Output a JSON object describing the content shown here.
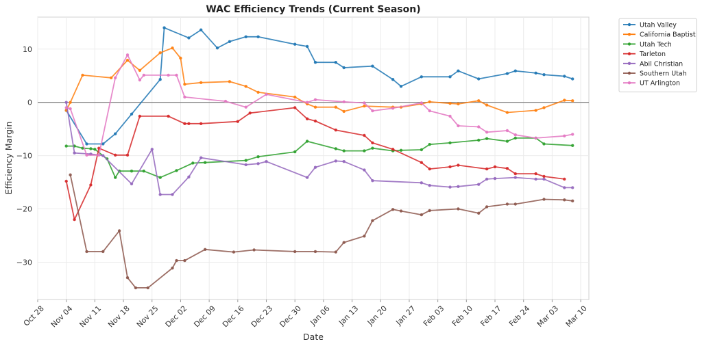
{
  "chart_data": {
    "type": "line",
    "title": "WAC Efficiency Trends (Current Season)",
    "xlabel": "Date",
    "ylabel": "Efficiency Margin",
    "year_start": 2024,
    "xlim": [
      "2024-10-28",
      "2025-03-12"
    ],
    "ylim": [
      -37,
      16
    ],
    "x_ticks": [
      {
        "date": "2024-10-28",
        "label": "Oct 28"
      },
      {
        "date": "2024-11-04",
        "label": "Nov 04"
      },
      {
        "date": "2024-11-11",
        "label": "Nov 11"
      },
      {
        "date": "2024-11-18",
        "label": "Nov 18"
      },
      {
        "date": "2024-11-25",
        "label": "Nov 25"
      },
      {
        "date": "2024-12-02",
        "label": "Dec 02"
      },
      {
        "date": "2024-12-09",
        "label": "Dec 09"
      },
      {
        "date": "2024-12-16",
        "label": "Dec 16"
      },
      {
        "date": "2024-12-23",
        "label": "Dec 23"
      },
      {
        "date": "2024-12-30",
        "label": "Dec 30"
      },
      {
        "date": "2025-01-06",
        "label": "Jan 06"
      },
      {
        "date": "2025-01-13",
        "label": "Jan 13"
      },
      {
        "date": "2025-01-20",
        "label": "Jan 20"
      },
      {
        "date": "2025-01-27",
        "label": "Jan 27"
      },
      {
        "date": "2025-02-03",
        "label": "Feb 03"
      },
      {
        "date": "2025-02-10",
        "label": "Feb 10"
      },
      {
        "date": "2025-02-17",
        "label": "Feb 17"
      },
      {
        "date": "2025-02-24",
        "label": "Feb 24"
      },
      {
        "date": "2025-03-03",
        "label": "Mar 03"
      },
      {
        "date": "2025-03-10",
        "label": "Mar 10"
      }
    ],
    "y_ticks": [
      {
        "value": -30,
        "label": "−30"
      },
      {
        "value": -20,
        "label": "−20"
      },
      {
        "value": -10,
        "label": "−10"
      },
      {
        "value": 0,
        "label": "0"
      },
      {
        "value": 10,
        "label": "10"
      }
    ],
    "zero_line": true,
    "grid": true,
    "legend_position": "outside-top-right",
    "series": [
      {
        "name": "Utah Valley",
        "color": "#1f77b4",
        "points": [
          [
            "2024-11-04",
            -1.5
          ],
          [
            "2024-11-09",
            -7.8
          ],
          [
            "2024-11-13",
            -7.8
          ],
          [
            "2024-11-16",
            -5.9
          ],
          [
            "2024-11-20",
            -2.2
          ],
          [
            "2024-11-27",
            4.3
          ],
          [
            "2024-11-28",
            14.0
          ],
          [
            "2024-12-04",
            12.1
          ],
          [
            "2024-12-07",
            13.6
          ],
          [
            "2024-12-11",
            10.2
          ],
          [
            "2024-12-14",
            11.4
          ],
          [
            "2024-12-18",
            12.3
          ],
          [
            "2024-12-21",
            12.3
          ],
          [
            "2024-12-30",
            10.9
          ],
          [
            "2025-01-02",
            10.5
          ],
          [
            "2025-01-04",
            7.5
          ],
          [
            "2025-01-09",
            7.5
          ],
          [
            "2025-01-11",
            6.5
          ],
          [
            "2025-01-18",
            6.8
          ],
          [
            "2025-01-23",
            4.3
          ],
          [
            "2025-01-25",
            3.0
          ],
          [
            "2025-01-30",
            4.8
          ],
          [
            "2025-02-06",
            4.8
          ],
          [
            "2025-02-08",
            5.9
          ],
          [
            "2025-02-13",
            4.4
          ],
          [
            "2025-02-20",
            5.4
          ],
          [
            "2025-02-22",
            5.9
          ],
          [
            "2025-02-27",
            5.5
          ],
          [
            "2025-03-01",
            5.2
          ],
          [
            "2025-03-06",
            4.9
          ],
          [
            "2025-03-08",
            4.4
          ]
        ]
      },
      {
        "name": "California Baptist",
        "color": "#ff7f0e",
        "points": [
          [
            "2024-11-04",
            -1.5
          ],
          [
            "2024-11-05",
            0.0
          ],
          [
            "2024-11-08",
            5.1
          ],
          [
            "2024-11-15",
            4.6
          ],
          [
            "2024-11-19",
            7.9
          ],
          [
            "2024-11-22",
            6.0
          ],
          [
            "2024-11-27",
            9.3
          ],
          [
            "2024-11-30",
            10.2
          ],
          [
            "2024-12-02",
            8.3
          ],
          [
            "2024-12-03",
            3.4
          ],
          [
            "2024-12-07",
            3.7
          ],
          [
            "2024-12-14",
            3.9
          ],
          [
            "2024-12-18",
            3.0
          ],
          [
            "2024-12-21",
            1.9
          ],
          [
            "2024-12-30",
            1.0
          ],
          [
            "2025-01-02",
            -0.3
          ],
          [
            "2025-01-04",
            -0.9
          ],
          [
            "2025-01-09",
            -0.9
          ],
          [
            "2025-01-11",
            -1.7
          ],
          [
            "2025-01-16",
            -0.7
          ],
          [
            "2025-01-23",
            -0.9
          ],
          [
            "2025-01-25",
            -0.9
          ],
          [
            "2025-01-30",
            -0.3
          ],
          [
            "2025-02-01",
            0.1
          ],
          [
            "2025-02-06",
            -0.2
          ],
          [
            "2025-02-08",
            -0.3
          ],
          [
            "2025-02-13",
            0.3
          ],
          [
            "2025-02-15",
            -0.5
          ],
          [
            "2025-02-20",
            -1.9
          ],
          [
            "2025-02-27",
            -1.5
          ],
          [
            "2025-03-01",
            -1.0
          ],
          [
            "2025-03-06",
            0.4
          ],
          [
            "2025-03-08",
            0.3
          ]
        ]
      },
      {
        "name": "Utah Tech",
        "color": "#2ca02c",
        "points": [
          [
            "2024-11-04",
            -8.2
          ],
          [
            "2024-11-06",
            -8.2
          ],
          [
            "2024-11-08",
            -8.6
          ],
          [
            "2024-11-10",
            -8.7
          ],
          [
            "2024-11-11",
            -8.8
          ],
          [
            "2024-11-14",
            -10.6
          ],
          [
            "2024-11-16",
            -14.1
          ],
          [
            "2024-11-17",
            -12.9
          ],
          [
            "2024-11-20",
            -12.9
          ],
          [
            "2024-11-23",
            -12.9
          ],
          [
            "2024-11-27",
            -14.1
          ],
          [
            "2024-12-01",
            -12.8
          ],
          [
            "2024-12-05",
            -11.4
          ],
          [
            "2024-12-08",
            -11.3
          ],
          [
            "2024-12-18",
            -10.9
          ],
          [
            "2024-12-21",
            -10.2
          ],
          [
            "2024-12-30",
            -9.3
          ],
          [
            "2025-01-02",
            -7.3
          ],
          [
            "2025-01-09",
            -8.7
          ],
          [
            "2025-01-11",
            -9.1
          ],
          [
            "2025-01-16",
            -9.1
          ],
          [
            "2025-01-18",
            -8.6
          ],
          [
            "2025-01-23",
            -9.1
          ],
          [
            "2025-01-25",
            -9.0
          ],
          [
            "2025-01-30",
            -8.9
          ],
          [
            "2025-02-01",
            -7.9
          ],
          [
            "2025-02-06",
            -7.6
          ],
          [
            "2025-02-13",
            -7.1
          ],
          [
            "2025-02-15",
            -6.8
          ],
          [
            "2025-02-20",
            -7.3
          ],
          [
            "2025-02-22",
            -6.7
          ],
          [
            "2025-02-27",
            -6.7
          ],
          [
            "2025-03-01",
            -7.8
          ],
          [
            "2025-03-08",
            -8.1
          ]
        ]
      },
      {
        "name": "Tarleton",
        "color": "#d62728",
        "points": [
          [
            "2024-11-04",
            -14.8
          ],
          [
            "2024-11-06",
            -22.0
          ],
          [
            "2024-11-10",
            -15.5
          ],
          [
            "2024-11-12",
            -8.6
          ],
          [
            "2024-11-16",
            -9.9
          ],
          [
            "2024-11-19",
            -9.9
          ],
          [
            "2024-11-22",
            -2.6
          ],
          [
            "2024-11-29",
            -2.6
          ],
          [
            "2024-12-03",
            -4.0
          ],
          [
            "2024-12-04",
            -4.0
          ],
          [
            "2024-12-07",
            -4.0
          ],
          [
            "2024-12-16",
            -3.6
          ],
          [
            "2024-12-19",
            -2.0
          ],
          [
            "2024-12-30",
            -1.0
          ],
          [
            "2025-01-02",
            -3.1
          ],
          [
            "2025-01-04",
            -3.5
          ],
          [
            "2025-01-09",
            -5.2
          ],
          [
            "2025-01-16",
            -6.2
          ],
          [
            "2025-01-18",
            -7.6
          ],
          [
            "2025-01-23",
            -8.8
          ],
          [
            "2025-01-30",
            -11.3
          ],
          [
            "2025-02-01",
            -12.5
          ],
          [
            "2025-02-06",
            -12.1
          ],
          [
            "2025-02-08",
            -11.8
          ],
          [
            "2025-02-15",
            -12.5
          ],
          [
            "2025-02-17",
            -12.1
          ],
          [
            "2025-02-20",
            -12.4
          ],
          [
            "2025-02-22",
            -13.4
          ],
          [
            "2025-02-27",
            -13.4
          ],
          [
            "2025-03-01",
            -13.9
          ],
          [
            "2025-03-06",
            -14.4
          ]
        ]
      },
      {
        "name": "Abil Christian",
        "color": "#9467bd",
        "points": [
          [
            "2024-11-04",
            0.0
          ],
          [
            "2024-11-06",
            -9.5
          ],
          [
            "2024-11-10",
            -9.7
          ],
          [
            "2024-11-13",
            -10.0
          ],
          [
            "2024-11-20",
            -15.3
          ],
          [
            "2024-11-25",
            -8.8
          ],
          [
            "2024-11-27",
            -17.3
          ],
          [
            "2024-11-30",
            -17.3
          ],
          [
            "2024-12-04",
            -14.0
          ],
          [
            "2024-12-07",
            -10.4
          ],
          [
            "2024-12-18",
            -11.7
          ],
          [
            "2024-12-21",
            -11.5
          ],
          [
            "2024-12-23",
            -11.1
          ],
          [
            "2025-01-02",
            -14.1
          ],
          [
            "2025-01-04",
            -12.2
          ],
          [
            "2025-01-09",
            -11.0
          ],
          [
            "2025-01-11",
            -11.1
          ],
          [
            "2025-01-16",
            -12.7
          ],
          [
            "2025-01-18",
            -14.7
          ],
          [
            "2025-01-30",
            -15.1
          ],
          [
            "2025-02-01",
            -15.6
          ],
          [
            "2025-02-06",
            -15.9
          ],
          [
            "2025-02-08",
            -15.8
          ],
          [
            "2025-02-13",
            -15.4
          ],
          [
            "2025-02-15",
            -14.4
          ],
          [
            "2025-02-17",
            -14.3
          ],
          [
            "2025-02-22",
            -14.1
          ],
          [
            "2025-02-27",
            -14.4
          ],
          [
            "2025-03-01",
            -14.4
          ],
          [
            "2025-03-06",
            -16.0
          ],
          [
            "2025-03-08",
            -16.0
          ]
        ]
      },
      {
        "name": "Southern Utah",
        "color": "#8c564b",
        "points": [
          [
            "2024-11-05",
            -13.6
          ],
          [
            "2024-11-09",
            -28.0
          ],
          [
            "2024-11-13",
            -28.0
          ],
          [
            "2024-11-17",
            -24.1
          ],
          [
            "2024-11-19",
            -32.9
          ],
          [
            "2024-11-21",
            -34.8
          ],
          [
            "2024-11-24",
            -34.8
          ],
          [
            "2024-11-30",
            -31.1
          ],
          [
            "2024-12-01",
            -29.7
          ],
          [
            "2024-12-03",
            -29.7
          ],
          [
            "2024-12-08",
            -27.6
          ],
          [
            "2024-12-15",
            -28.1
          ],
          [
            "2024-12-20",
            -27.7
          ],
          [
            "2024-12-30",
            -28.0
          ],
          [
            "2025-01-04",
            -28.0
          ],
          [
            "2025-01-09",
            -28.1
          ],
          [
            "2025-01-11",
            -26.3
          ],
          [
            "2025-01-16",
            -25.1
          ],
          [
            "2025-01-18",
            -22.2
          ],
          [
            "2025-01-23",
            -20.1
          ],
          [
            "2025-01-25",
            -20.4
          ],
          [
            "2025-01-30",
            -21.1
          ],
          [
            "2025-02-01",
            -20.3
          ],
          [
            "2025-02-08",
            -20.0
          ],
          [
            "2025-02-13",
            -20.8
          ],
          [
            "2025-02-15",
            -19.6
          ],
          [
            "2025-02-20",
            -19.1
          ],
          [
            "2025-02-22",
            -19.1
          ],
          [
            "2025-03-01",
            -18.2
          ],
          [
            "2025-03-06",
            -18.3
          ],
          [
            "2025-03-08",
            -18.5
          ]
        ]
      },
      {
        "name": "UT Arlington",
        "color": "#e377c2",
        "points": [
          [
            "2024-11-04",
            -1.0
          ],
          [
            "2024-11-05",
            -1.2
          ],
          [
            "2024-11-09",
            -9.9
          ],
          [
            "2024-11-12",
            -9.9
          ],
          [
            "2024-11-16",
            4.6
          ],
          [
            "2024-11-19",
            8.9
          ],
          [
            "2024-11-22",
            4.2
          ],
          [
            "2024-11-23",
            5.1
          ],
          [
            "2024-11-29",
            5.1
          ],
          [
            "2024-12-01",
            5.1
          ],
          [
            "2024-12-03",
            1.0
          ],
          [
            "2024-12-13",
            0.2
          ],
          [
            "2024-12-18",
            -0.9
          ],
          [
            "2024-12-23",
            1.5
          ],
          [
            "2025-01-02",
            0.0
          ],
          [
            "2025-01-04",
            0.5
          ],
          [
            "2025-01-11",
            0.1
          ],
          [
            "2025-01-16",
            -0.1
          ],
          [
            "2025-01-18",
            -1.6
          ],
          [
            "2025-01-23",
            -1.1
          ],
          [
            "2025-01-30",
            -0.1
          ],
          [
            "2025-02-01",
            -1.6
          ],
          [
            "2025-02-06",
            -2.6
          ],
          [
            "2025-02-08",
            -4.4
          ],
          [
            "2025-02-13",
            -4.6
          ],
          [
            "2025-02-15",
            -5.6
          ],
          [
            "2025-02-20",
            -5.3
          ],
          [
            "2025-02-22",
            -6.1
          ],
          [
            "2025-02-27",
            -6.7
          ],
          [
            "2025-03-06",
            -6.3
          ],
          [
            "2025-03-08",
            -6.0
          ]
        ]
      }
    ]
  }
}
